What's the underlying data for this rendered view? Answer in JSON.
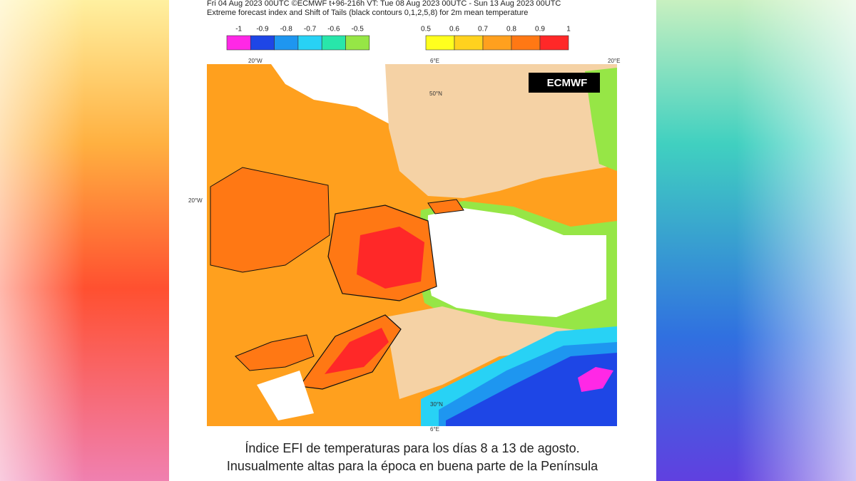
{
  "header": {
    "line1": "Fri 04 Aug 2023 00UTC ©ECMWF t+96-216h  VT: Tue 08 Aug 2023 00UTC - Sun 13 Aug 2023 00UTC",
    "line2": "Extreme forecast index and Shift of Tails (black contours 0,1,2,5,8) for 2m mean temperature"
  },
  "legend": {
    "negative": {
      "labels": [
        "-1",
        "-0.9",
        "-0.8",
        "-0.7",
        "-0.6",
        "-0.5"
      ],
      "colors": [
        "#ff28e6",
        "#1e46e6",
        "#1e96f0",
        "#28d2f5",
        "#28e6aa",
        "#96e646"
      ]
    },
    "positive": {
      "labels": [
        "0.5",
        "0.6",
        "0.7",
        "0.8",
        "0.9",
        "1"
      ],
      "colors": [
        "#ffff1e",
        "#ffd21e",
        "#ffa01e",
        "#ff7814",
        "#ff2828"
      ]
    }
  },
  "map": {
    "labels": [
      "20°W",
      "20°W",
      "6°E",
      "50°N",
      "30°N",
      "6°E",
      "20°E"
    ],
    "logo": "ECMWF"
  },
  "caption": {
    "line1": "Índice EFI de temperaturas para los días 8 a 13 de agosto.",
    "line2": "Inusualmente altas para la época en buena parte de la Península"
  }
}
